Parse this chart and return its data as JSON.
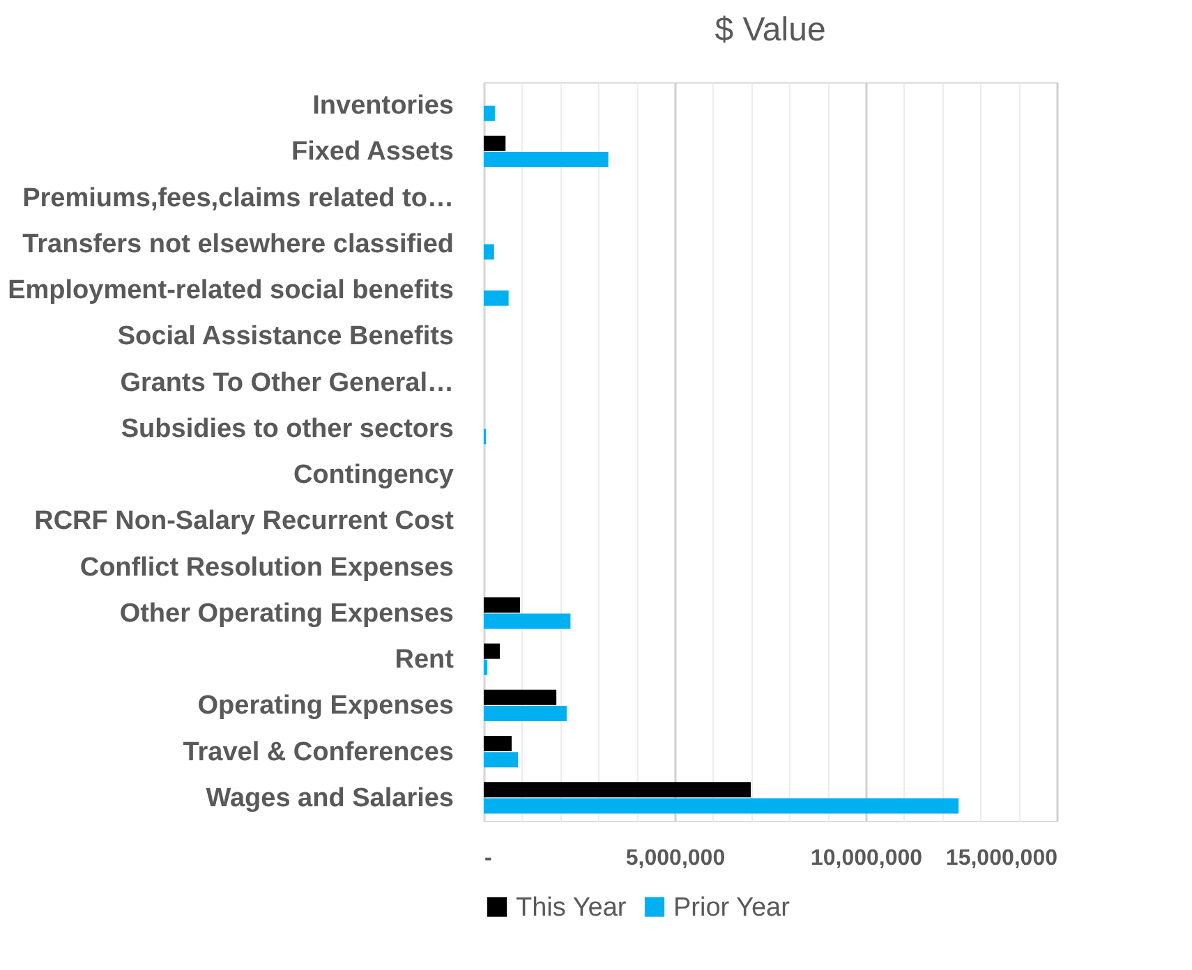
{
  "chart_data": {
    "type": "bar",
    "orientation": "horizontal",
    "title": "$ Value",
    "categories": [
      "Inventories",
      "Fixed Assets",
      "Premiums,fees,claims related to…",
      "Transfers not elsewhere classified",
      "Employment-related social benefits",
      "Social Assistance Benefits",
      "Grants To Other General…",
      "Subsidies to other sectors",
      "Contingency",
      "RCRF Non-Salary Recurrent Cost",
      "Conflict Resolution Expenses",
      "Other Operating Expenses",
      "Rent",
      "Operating Expenses",
      "Travel & Conferences",
      "Wages and Salaries"
    ],
    "series": [
      {
        "name": "This Year",
        "color": "#000000",
        "values": [
          0,
          570000,
          0,
          0,
          0,
          0,
          0,
          0,
          0,
          0,
          0,
          950000,
          420000,
          1900000,
          730000,
          6990000
        ]
      },
      {
        "name": "Prior Year",
        "color": "#00b0f0",
        "values": [
          290000,
          3260000,
          0,
          270000,
          650000,
          0,
          0,
          60000,
          0,
          0,
          0,
          2270000,
          90000,
          2170000,
          900000,
          12430000
        ]
      }
    ],
    "xlim": [
      0,
      15000000
    ],
    "xticks": [
      {
        "value": 0,
        "label": "-"
      },
      {
        "value": 1000000,
        "label": null
      },
      {
        "value": 2000000,
        "label": null
      },
      {
        "value": 3000000,
        "label": null
      },
      {
        "value": 4000000,
        "label": null
      },
      {
        "value": 5000000,
        "label": "5,000,000"
      },
      {
        "value": 6000000,
        "label": null
      },
      {
        "value": 7000000,
        "label": null
      },
      {
        "value": 8000000,
        "label": null
      },
      {
        "value": 9000000,
        "label": null
      },
      {
        "value": 10000000,
        "label": "10,000,000"
      },
      {
        "value": 11000000,
        "label": null
      },
      {
        "value": 12000000,
        "label": null
      },
      {
        "value": 13000000,
        "label": null
      },
      {
        "value": 14000000,
        "label": null
      },
      {
        "value": 15000000,
        "label": "15,000,000"
      }
    ],
    "grid": true,
    "legend": "bottom"
  }
}
